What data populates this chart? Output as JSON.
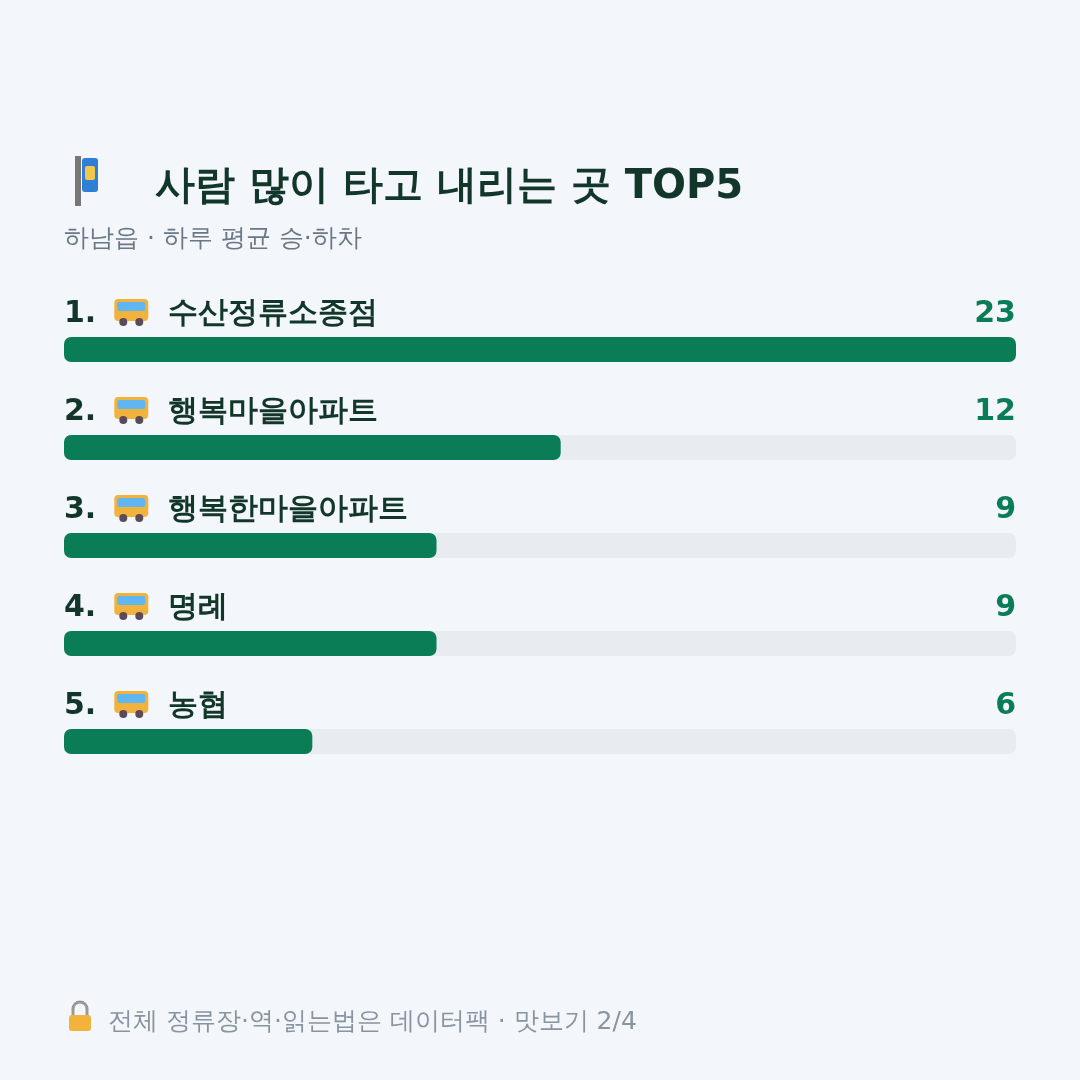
{
  "chart_data": {
    "type": "bar",
    "orientation": "horizontal",
    "title": "사람 많이 타고 내리는 곳 TOP5",
    "subtitle": "하남읍 · 하루 평균 승·하차",
    "categories": [
      "1. 수산정류소종점",
      "2. 행복마을아파트",
      "3. 행복한마을아파트",
      "4. 명례",
      "5. 농협"
    ],
    "values": [
      23,
      12,
      9,
      9,
      6
    ],
    "color": "#0b7d56",
    "data_labels": true,
    "annotations": [
      "전체 정류장·역·읽는법은 데이터팩 · 맛보기 2/4"
    ]
  }
}
